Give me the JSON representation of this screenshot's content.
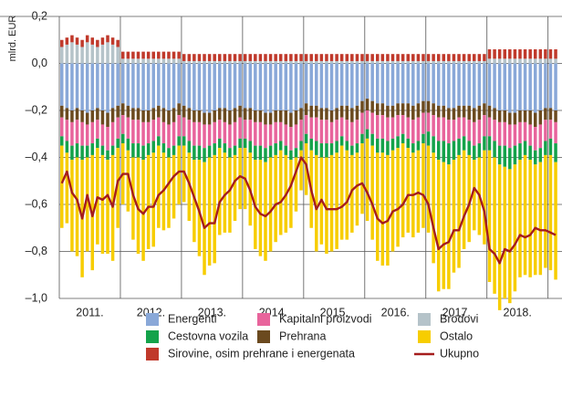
{
  "chart_data": {
    "type": "bar",
    "stacked": true,
    "y_label": "mlrd. EUR",
    "categories": [
      null,
      null,
      null,
      null,
      null,
      null,
      "2011.",
      null,
      null,
      null,
      null,
      null,
      null,
      null,
      null,
      null,
      null,
      null,
      "2012.",
      null,
      null,
      null,
      null,
      null,
      null,
      null,
      null,
      null,
      null,
      null,
      "2013.",
      null,
      null,
      null,
      null,
      null,
      null,
      null,
      null,
      null,
      null,
      null,
      "2014.",
      null,
      null,
      null,
      null,
      null,
      null,
      null,
      null,
      null,
      null,
      null,
      "2015.",
      null,
      null,
      null,
      null,
      null,
      null,
      null,
      null,
      null,
      null,
      null,
      "2016.",
      null,
      null,
      null,
      null,
      null,
      null,
      null,
      null,
      null,
      null,
      null,
      "2017.",
      null,
      null,
      null,
      null,
      null,
      null,
      null,
      null,
      null,
      null,
      null,
      "2018.",
      null,
      null,
      null,
      null,
      null,
      null,
      null
    ],
    "ylim": [
      -1.0,
      0.2
    ],
    "yticks": [
      {
        "value": 0.2,
        "label": "0,2"
      },
      {
        "value": 0,
        "label": "0,0"
      },
      {
        "value": -0.2,
        "label": "–0,2"
      },
      {
        "value": -0.4,
        "label": "–0,4"
      },
      {
        "value": -0.6,
        "label": "–0,6"
      },
      {
        "value": -0.8,
        "label": "–0,8"
      },
      {
        "value": -1.0,
        "label": "–1,0"
      }
    ],
    "grid": true,
    "series": [
      {
        "name": "Energenti",
        "color": "#89a8d8",
        "values": [
          -0.18,
          -0.19,
          -0.2,
          -0.19,
          -0.2,
          -0.21,
          -0.2,
          -0.19,
          -0.2,
          -0.21,
          -0.19,
          -0.18,
          -0.17,
          -0.18,
          -0.19,
          -0.19,
          -0.2,
          -0.2,
          -0.19,
          -0.18,
          -0.19,
          -0.2,
          -0.19,
          -0.17,
          -0.18,
          -0.19,
          -0.2,
          -0.2,
          -0.21,
          -0.21,
          -0.2,
          -0.19,
          -0.19,
          -0.2,
          -0.19,
          -0.18,
          -0.19,
          -0.19,
          -0.2,
          -0.2,
          -0.21,
          -0.21,
          -0.2,
          -0.2,
          -0.2,
          -0.21,
          -0.2,
          -0.19,
          -0.17,
          -0.18,
          -0.18,
          -0.19,
          -0.19,
          -0.2,
          -0.19,
          -0.18,
          -0.18,
          -0.19,
          -0.18,
          -0.16,
          -0.15,
          -0.16,
          -0.17,
          -0.17,
          -0.18,
          -0.18,
          -0.17,
          -0.17,
          -0.17,
          -0.18,
          -0.17,
          -0.16,
          -0.16,
          -0.17,
          -0.18,
          -0.18,
          -0.19,
          -0.19,
          -0.18,
          -0.18,
          -0.18,
          -0.19,
          -0.18,
          -0.17,
          -0.18,
          -0.19,
          -0.2,
          -0.2,
          -0.21,
          -0.21,
          -0.2,
          -0.2,
          -0.2,
          -0.21,
          -0.2,
          -0.19,
          -0.19,
          -0.2
        ]
      },
      {
        "name": "Kapitalni proizvodi",
        "color": "#e8649c",
        "values": [
          -0.08,
          -0.09,
          -0.1,
          -0.1,
          -0.1,
          -0.09,
          -0.09,
          -0.08,
          -0.09,
          -0.1,
          -0.1,
          -0.09,
          -0.08,
          -0.09,
          -0.1,
          -0.1,
          -0.1,
          -0.09,
          -0.09,
          -0.08,
          -0.09,
          -0.1,
          -0.1,
          -0.09,
          -0.08,
          -0.09,
          -0.1,
          -0.1,
          -0.1,
          -0.09,
          -0.09,
          -0.08,
          -0.09,
          -0.1,
          -0.1,
          -0.09,
          -0.08,
          -0.09,
          -0.1,
          -0.1,
          -0.1,
          -0.09,
          -0.09,
          -0.08,
          -0.09,
          -0.1,
          -0.1,
          -0.09,
          -0.08,
          -0.09,
          -0.1,
          -0.1,
          -0.1,
          -0.09,
          -0.09,
          -0.08,
          -0.09,
          -0.1,
          -0.1,
          -0.09,
          -0.08,
          -0.09,
          -0.1,
          -0.1,
          -0.1,
          -0.09,
          -0.09,
          -0.08,
          -0.09,
          -0.1,
          -0.1,
          -0.09,
          -0.08,
          -0.09,
          -0.1,
          -0.1,
          -0.1,
          -0.09,
          -0.09,
          -0.08,
          -0.09,
          -0.1,
          -0.1,
          -0.09,
          -0.08,
          -0.09,
          -0.1,
          -0.1,
          -0.1,
          -0.09,
          -0.09,
          -0.08,
          -0.09,
          -0.1,
          -0.1,
          -0.09,
          -0.08,
          -0.09
        ]
      },
      {
        "name": "Brodovi",
        "color": "#b5c3c9",
        "values": [
          0.07,
          0.08,
          0.09,
          0.08,
          0.07,
          0.09,
          0.08,
          0.07,
          0.08,
          0.09,
          0.08,
          0.07,
          0.02,
          0.02,
          0.02,
          0.02,
          0.02,
          0.02,
          0.02,
          0.02,
          0.02,
          0.02,
          0.02,
          0.02,
          0.01,
          0.01,
          0.01,
          0.01,
          0.01,
          0.01,
          0.01,
          0.01,
          0.01,
          0.01,
          0.01,
          0.01,
          0.01,
          0.01,
          0.01,
          0.01,
          0.01,
          0.01,
          0.01,
          0.01,
          0.01,
          0.01,
          0.01,
          0.01,
          0.01,
          0.01,
          0.01,
          0.01,
          0.01,
          0.01,
          0.01,
          0.01,
          0.01,
          0.01,
          0.01,
          0.01,
          0.01,
          0.01,
          0.01,
          0.01,
          0.01,
          0.01,
          0.01,
          0.01,
          0.01,
          0.01,
          0.01,
          0.01,
          0.01,
          0.01,
          0.01,
          0.01,
          0.01,
          0.01,
          0.01,
          0.01,
          0.01,
          0.01,
          0.01,
          0.01,
          0.02,
          0.02,
          0.02,
          0.02,
          0.02,
          0.02,
          0.02,
          0.02,
          0.02,
          0.02,
          0.02,
          0.02,
          0.02,
          0.02
        ]
      },
      {
        "name": "Cestovna vozila",
        "color": "#14a24a",
        "values": [
          -0.04,
          -0.05,
          -0.06,
          -0.06,
          -0.06,
          -0.05,
          -0.05,
          -0.04,
          -0.04,
          -0.04,
          -0.04,
          -0.04,
          -0.04,
          -0.05,
          -0.06,
          -0.06,
          -0.06,
          -0.05,
          -0.05,
          -0.04,
          -0.04,
          -0.04,
          -0.04,
          -0.04,
          -0.04,
          -0.05,
          -0.06,
          -0.06,
          -0.06,
          -0.05,
          -0.05,
          -0.04,
          -0.04,
          -0.04,
          -0.04,
          -0.04,
          -0.04,
          -0.05,
          -0.06,
          -0.06,
          -0.06,
          -0.05,
          -0.05,
          -0.04,
          -0.04,
          -0.04,
          -0.04,
          -0.04,
          -0.04,
          -0.05,
          -0.06,
          -0.06,
          -0.06,
          -0.05,
          -0.05,
          -0.04,
          -0.04,
          -0.04,
          -0.04,
          -0.04,
          -0.04,
          -0.05,
          -0.06,
          -0.06,
          -0.06,
          -0.05,
          -0.05,
          -0.04,
          -0.04,
          -0.04,
          -0.04,
          -0.04,
          -0.06,
          -0.07,
          -0.08,
          -0.09,
          -0.09,
          -0.08,
          -0.07,
          -0.06,
          -0.06,
          -0.06,
          -0.06,
          -0.06,
          -0.06,
          -0.07,
          -0.08,
          -0.09,
          -0.09,
          -0.08,
          -0.07,
          -0.06,
          -0.06,
          -0.06,
          -0.06,
          -0.06,
          -0.07,
          -0.08
        ]
      },
      {
        "name": "Prehrana",
        "color": "#6b4a1f",
        "values": [
          -0.05,
          -0.05,
          -0.05,
          -0.05,
          -0.05,
          -0.05,
          -0.05,
          -0.05,
          -0.06,
          -0.06,
          -0.06,
          -0.05,
          -0.05,
          -0.05,
          -0.05,
          -0.05,
          -0.05,
          -0.05,
          -0.05,
          -0.05,
          -0.06,
          -0.06,
          -0.06,
          -0.05,
          -0.05,
          -0.05,
          -0.05,
          -0.05,
          -0.05,
          -0.05,
          -0.05,
          -0.05,
          -0.06,
          -0.06,
          -0.06,
          -0.05,
          -0.05,
          -0.05,
          -0.05,
          -0.05,
          -0.05,
          -0.05,
          -0.05,
          -0.05,
          -0.06,
          -0.06,
          -0.06,
          -0.05,
          -0.05,
          -0.05,
          -0.05,
          -0.05,
          -0.05,
          -0.05,
          -0.05,
          -0.05,
          -0.06,
          -0.06,
          -0.06,
          -0.05,
          -0.05,
          -0.05,
          -0.05,
          -0.05,
          -0.05,
          -0.05,
          -0.05,
          -0.05,
          -0.06,
          -0.06,
          -0.06,
          -0.05,
          -0.05,
          -0.05,
          -0.05,
          -0.05,
          -0.05,
          -0.05,
          -0.05,
          -0.05,
          -0.06,
          -0.06,
          -0.06,
          -0.05,
          -0.05,
          -0.05,
          -0.05,
          -0.05,
          -0.05,
          -0.05,
          -0.05,
          -0.05,
          -0.06,
          -0.06,
          -0.06,
          -0.05,
          -0.05,
          -0.05
        ]
      },
      {
        "name": "Ostalo",
        "color": "#f7cd00",
        "values": [
          -0.35,
          -0.3,
          -0.39,
          -0.42,
          -0.5,
          -0.4,
          -0.49,
          -0.41,
          -0.42,
          -0.4,
          -0.45,
          -0.34,
          -0.26,
          -0.26,
          -0.35,
          -0.41,
          -0.43,
          -0.4,
          -0.4,
          -0.35,
          -0.33,
          -0.3,
          -0.27,
          -0.25,
          -0.24,
          -0.29,
          -0.35,
          -0.41,
          -0.48,
          -0.46,
          -0.46,
          -0.37,
          -0.34,
          -0.32,
          -0.28,
          -0.26,
          -0.26,
          -0.31,
          -0.38,
          -0.41,
          -0.42,
          -0.4,
          -0.37,
          -0.36,
          -0.33,
          -0.29,
          -0.23,
          -0.17,
          -0.22,
          -0.33,
          -0.41,
          -0.37,
          -0.41,
          -0.41,
          -0.41,
          -0.4,
          -0.38,
          -0.33,
          -0.31,
          -0.3,
          -0.35,
          -0.4,
          -0.46,
          -0.48,
          -0.47,
          -0.43,
          -0.42,
          -0.4,
          -0.36,
          -0.36,
          -0.35,
          -0.36,
          -0.37,
          -0.47,
          -0.56,
          -0.54,
          -0.53,
          -0.48,
          -0.48,
          -0.42,
          -0.37,
          -0.3,
          -0.33,
          -0.4,
          -0.56,
          -0.58,
          -0.62,
          -0.56,
          -0.57,
          -0.54,
          -0.5,
          -0.51,
          -0.5,
          -0.47,
          -0.48,
          -0.48,
          -0.49,
          -0.5
        ]
      },
      {
        "name": "Sirovine, osim prehrane i energenata",
        "color": "#c0392b",
        "values": [
          0.03,
          0.03,
          0.03,
          0.03,
          0.03,
          0.03,
          0.03,
          0.03,
          0.03,
          0.03,
          0.03,
          0.03,
          0.03,
          0.03,
          0.03,
          0.03,
          0.03,
          0.03,
          0.03,
          0.03,
          0.03,
          0.03,
          0.03,
          0.03,
          0.03,
          0.03,
          0.03,
          0.03,
          0.03,
          0.03,
          0.03,
          0.03,
          0.03,
          0.03,
          0.03,
          0.03,
          0.03,
          0.03,
          0.03,
          0.03,
          0.03,
          0.03,
          0.03,
          0.03,
          0.03,
          0.03,
          0.03,
          0.03,
          0.03,
          0.03,
          0.03,
          0.03,
          0.03,
          0.03,
          0.03,
          0.03,
          0.03,
          0.03,
          0.03,
          0.03,
          0.03,
          0.03,
          0.03,
          0.03,
          0.03,
          0.03,
          0.03,
          0.03,
          0.03,
          0.03,
          0.03,
          0.03,
          0.03,
          0.03,
          0.03,
          0.03,
          0.03,
          0.03,
          0.03,
          0.03,
          0.03,
          0.03,
          0.03,
          0.03,
          0.04,
          0.04,
          0.04,
          0.04,
          0.04,
          0.04,
          0.04,
          0.04,
          0.04,
          0.04,
          0.04,
          0.04,
          0.04,
          0.04
        ]
      },
      {
        "name": "Ukupno",
        "color": "#a51d1d",
        "type": "line",
        "values": [
          -0.51,
          -0.46,
          -0.55,
          -0.58,
          -0.66,
          -0.56,
          -0.65,
          -0.57,
          -0.58,
          -0.56,
          -0.61,
          -0.5,
          -0.47,
          -0.47,
          -0.56,
          -0.62,
          -0.64,
          -0.61,
          -0.61,
          -0.56,
          -0.54,
          -0.51,
          -0.48,
          -0.46,
          -0.46,
          -0.51,
          -0.57,
          -0.63,
          -0.7,
          -0.68,
          -0.68,
          -0.59,
          -0.56,
          -0.54,
          -0.5,
          -0.48,
          -0.49,
          -0.54,
          -0.61,
          -0.64,
          -0.65,
          -0.63,
          -0.6,
          -0.59,
          -0.56,
          -0.52,
          -0.46,
          -0.4,
          -0.43,
          -0.54,
          -0.62,
          -0.58,
          -0.62,
          -0.62,
          -0.62,
          -0.61,
          -0.59,
          -0.54,
          -0.52,
          -0.51,
          -0.55,
          -0.6,
          -0.66,
          -0.68,
          -0.67,
          -0.63,
          -0.62,
          -0.6,
          -0.56,
          -0.56,
          -0.55,
          -0.56,
          -0.6,
          -0.7,
          -0.79,
          -0.77,
          -0.76,
          -0.71,
          -0.71,
          -0.65,
          -0.6,
          -0.53,
          -0.56,
          -0.63,
          -0.79,
          -0.81,
          -0.85,
          -0.79,
          -0.8,
          -0.77,
          -0.73,
          -0.74,
          -0.73,
          -0.7,
          -0.71,
          -0.71,
          -0.72,
          -0.73
        ]
      }
    ]
  }
}
